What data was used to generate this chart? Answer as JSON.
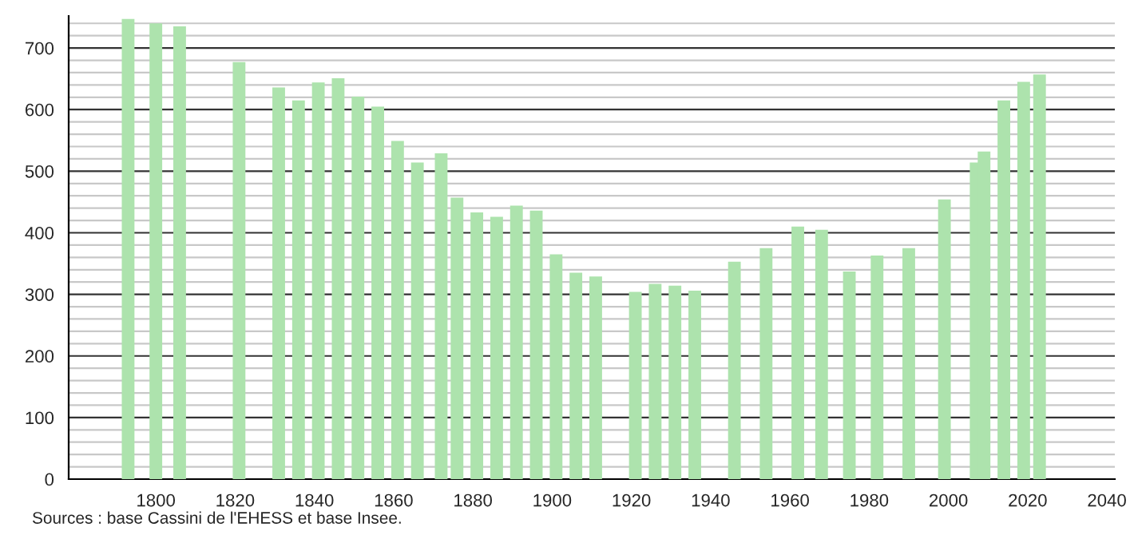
{
  "chart_data": {
    "type": "bar",
    "x": [
      1793,
      1800,
      1806,
      1821,
      1831,
      1836,
      1841,
      1846,
      1851,
      1856,
      1861,
      1866,
      1872,
      1876,
      1881,
      1886,
      1891,
      1896,
      1901,
      1906,
      1911,
      1921,
      1926,
      1931,
      1936,
      1946,
      1954,
      1962,
      1968,
      1975,
      1982,
      1990,
      1999,
      2007,
      2009,
      2014,
      2019,
      2023
    ],
    "values": [
      747,
      740,
      735,
      677,
      636,
      615,
      644,
      651,
      621,
      605,
      549,
      514,
      529,
      457,
      433,
      426,
      444,
      436,
      365,
      335,
      329,
      304,
      317,
      314,
      306,
      353,
      375,
      410,
      405,
      337,
      363,
      375,
      454,
      514,
      532,
      615,
      645,
      657
    ],
    "color": "#ade3ad",
    "xlim": [
      1778,
      2042
    ],
    "xticks": [
      1800,
      1820,
      1840,
      1860,
      1880,
      1900,
      1920,
      1940,
      1960,
      1980,
      2000,
      2020,
      2040
    ],
    "ylim": [
      0,
      752
    ],
    "yticks": [
      0,
      {
        "value": 20,
        "label": null
      },
      {
        "value": 40,
        "label": null
      },
      {
        "value": 60,
        "label": null
      },
      {
        "value": 80,
        "label": null
      },
      100,
      {
        "value": 120,
        "label": null
      },
      {
        "value": 140,
        "label": null
      },
      {
        "value": 160,
        "label": null
      },
      {
        "value": 180,
        "label": null
      },
      200,
      {
        "value": 220,
        "label": null
      },
      {
        "value": 240,
        "label": null
      },
      {
        "value": 260,
        "label": null
      },
      {
        "value": 280,
        "label": null
      },
      300,
      {
        "value": 320,
        "label": null
      },
      {
        "value": 340,
        "label": null
      },
      {
        "value": 360,
        "label": null
      },
      {
        "value": 380,
        "label": null
      },
      400,
      {
        "value": 420,
        "label": null
      },
      {
        "value": 440,
        "label": null
      },
      {
        "value": 460,
        "label": null
      },
      {
        "value": 480,
        "label": null
      },
      500,
      {
        "value": 520,
        "label": null
      },
      {
        "value": 540,
        "label": null
      },
      {
        "value": 560,
        "label": null
      },
      {
        "value": 580,
        "label": null
      },
      600,
      {
        "value": 620,
        "label": null
      },
      {
        "value": 640,
        "label": null
      },
      {
        "value": 660,
        "label": null
      },
      {
        "value": 680,
        "label": null
      },
      700,
      {
        "value": 720,
        "label": null
      },
      {
        "value": 740,
        "label": null
      }
    ],
    "grid": "y",
    "annotations": [
      "Sources : base Cassini de l'EHESS et base Insee."
    ]
  }
}
